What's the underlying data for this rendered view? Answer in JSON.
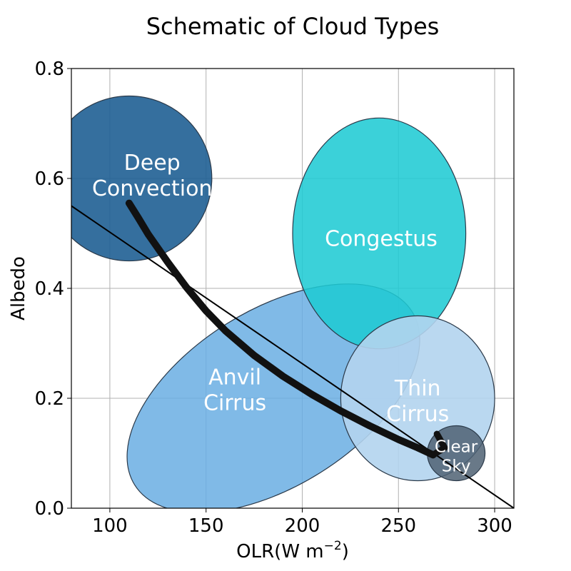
{
  "chart_data": {
    "type": "scatter",
    "title": "Schematic of Cloud Types",
    "xlabel": "OLR(W m",
    "xlabel_sup": "−2",
    "xlabel_close": ")",
    "ylabel": "Albedo",
    "xlim": [
      80,
      310
    ],
    "ylim": [
      0.0,
      0.8
    ],
    "grid": true,
    "x_ticks": [
      100,
      150,
      200,
      250,
      300
    ],
    "y_ticks": [
      0.0,
      0.2,
      0.4,
      0.6,
      0.8
    ],
    "x_tick_labels": [
      "100",
      "150",
      "200",
      "250",
      "300"
    ],
    "y_tick_labels": [
      "0.0",
      "0.2",
      "0.4",
      "0.6",
      "0.8"
    ],
    "clouds": [
      {
        "key": "anvil-cirrus",
        "lines": [
          "Anvil",
          "Cirrus"
        ],
        "cx": 185,
        "cy": 0.2,
        "rx": 85,
        "ry": 0.16,
        "angle_deg": -32,
        "color": "#6aaee3",
        "opacity": 0.85,
        "label_x": 165,
        "label_y": 0.215
      },
      {
        "key": "deep-convection",
        "lines": [
          "Deep",
          "Convection"
        ],
        "cx": 110,
        "cy": 0.6,
        "rx": 43,
        "ry": 0.15,
        "angle_deg": 0,
        "color": "#1f5f94",
        "opacity": 0.9,
        "label_x": 122,
        "label_y": 0.605
      },
      {
        "key": "congestus",
        "lines": [
          "Congestus"
        ],
        "cx": 240,
        "cy": 0.5,
        "rx": 45,
        "ry": 0.21,
        "angle_deg": 0,
        "color": "#1ecad3",
        "opacity": 0.87,
        "label_x": 241,
        "label_y": 0.49
      },
      {
        "key": "thin-cirrus",
        "lines": [
          "Thin",
          "Cirrus"
        ],
        "cx": 260,
        "cy": 0.2,
        "rx": 40,
        "ry": 0.15,
        "angle_deg": 0,
        "color": "#b3d4ee",
        "opacity": 0.9,
        "label_x": 260,
        "label_y": 0.195
      },
      {
        "key": "clear-sky",
        "lines": [
          "Clear",
          "Sky"
        ],
        "cx": 280,
        "cy": 0.1,
        "rx": 15,
        "ry": 0.05,
        "angle_deg": 0,
        "color": "#4f6273",
        "opacity": 0.85,
        "label_x": 280,
        "label_y": 0.095
      }
    ],
    "reference_line": {
      "x": [
        80,
        310
      ],
      "y": [
        0.55,
        0.0
      ],
      "color": "#000000"
    },
    "trajectory": {
      "x": [
        110,
        115,
        120,
        130,
        140,
        150,
        160,
        175,
        190,
        205,
        220,
        235,
        250,
        260,
        268
      ],
      "y": [
        0.555,
        0.527,
        0.498,
        0.448,
        0.401,
        0.359,
        0.323,
        0.278,
        0.24,
        0.207,
        0.177,
        0.15,
        0.125,
        0.11,
        0.097
      ],
      "hook_x": [
        268,
        274,
        270
      ],
      "hook_y": [
        0.097,
        0.11,
        0.135
      ],
      "color": "#111111"
    }
  }
}
